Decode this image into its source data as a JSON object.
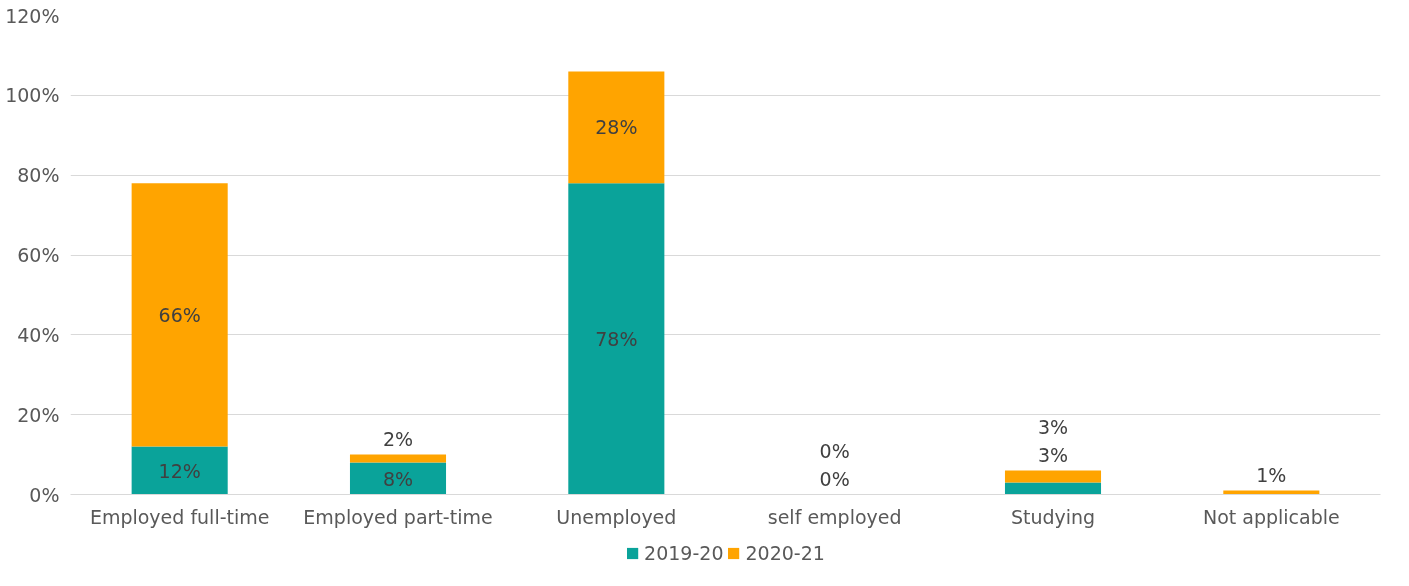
{
  "chart_data": {
    "type": "bar",
    "stacked": true,
    "categories": [
      "Employed full-time",
      "Employed part-time",
      "Unemployed",
      "self employed",
      "Studying",
      "Not applicable"
    ],
    "series": [
      {
        "name": "2019-20",
        "color": "#0aa39a",
        "values": [
          12,
          8,
          78,
          0,
          3,
          0
        ],
        "value_labels": [
          "12%",
          "8%",
          "78%",
          "0%",
          "3%",
          null
        ]
      },
      {
        "name": "2020-21",
        "color": "#ffa400",
        "values": [
          66,
          2,
          28,
          0,
          3,
          1
        ],
        "value_labels": [
          "66%",
          "2%",
          "28%",
          "0%",
          "3%",
          "1%"
        ]
      }
    ],
    "ylim": [
      0,
      120
    ],
    "yticks": [
      {
        "value": 0,
        "label": "0%"
      },
      {
        "value": 20,
        "label": "20%"
      },
      {
        "value": 40,
        "label": "40%"
      },
      {
        "value": 60,
        "label": "60%"
      },
      {
        "value": 80,
        "label": "80%"
      },
      {
        "value": 100,
        "label": "100%"
      },
      {
        "value": 120,
        "label": "120%"
      }
    ],
    "grid": "y",
    "legend": "bottom"
  }
}
